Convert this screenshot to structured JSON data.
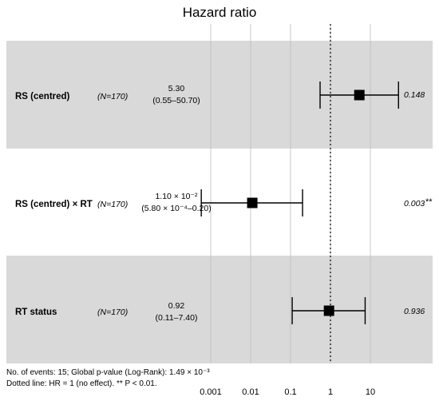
{
  "chart_data": {
    "type": "forest",
    "title": "Hazard ratio",
    "xscale": "log",
    "xlim": [
      0.001,
      30
    ],
    "ticks": [
      {
        "value": 0.001,
        "label": "0.001"
      },
      {
        "value": 0.01,
        "label": "0.01"
      },
      {
        "value": 0.1,
        "label": "0.1"
      },
      {
        "value": 1,
        "label": "1"
      },
      {
        "value": 10,
        "label": "10"
      }
    ],
    "reference_line": 1,
    "rows": [
      {
        "variable": "RS (centred)",
        "n": "(N=170)",
        "hr_text": "5.30",
        "ci_text": "(0.55–50.70)",
        "hr": 5.3,
        "ci_low": 0.55,
        "ci_high": 50.7,
        "p_text": "0.148",
        "sig": "",
        "shaded": true
      },
      {
        "variable": "RS (centred) × RT",
        "n": "(N=170)",
        "hr_text": "1.10 × 10⁻²",
        "ci_text": "(5.80 × 10⁻⁴–0.20)",
        "hr": 0.011,
        "ci_low": 0.00058,
        "ci_high": 0.2,
        "p_text": "0.003",
        "sig": "**",
        "shaded": false
      },
      {
        "variable": "RT status",
        "n": "(N=170)",
        "hr_text": "0.92",
        "ci_text": "(0.11–7.40)",
        "hr": 0.92,
        "ci_low": 0.11,
        "ci_high": 7.4,
        "p_text": "0.936",
        "sig": "",
        "shaded": true
      }
    ],
    "footnote_line1": "No. of events: 15; Global p-value (Log-Rank): 1.49 × 10⁻³",
    "footnote_line2": "Dotted line: HR = 1 (no effect). ** P < 0.01."
  }
}
